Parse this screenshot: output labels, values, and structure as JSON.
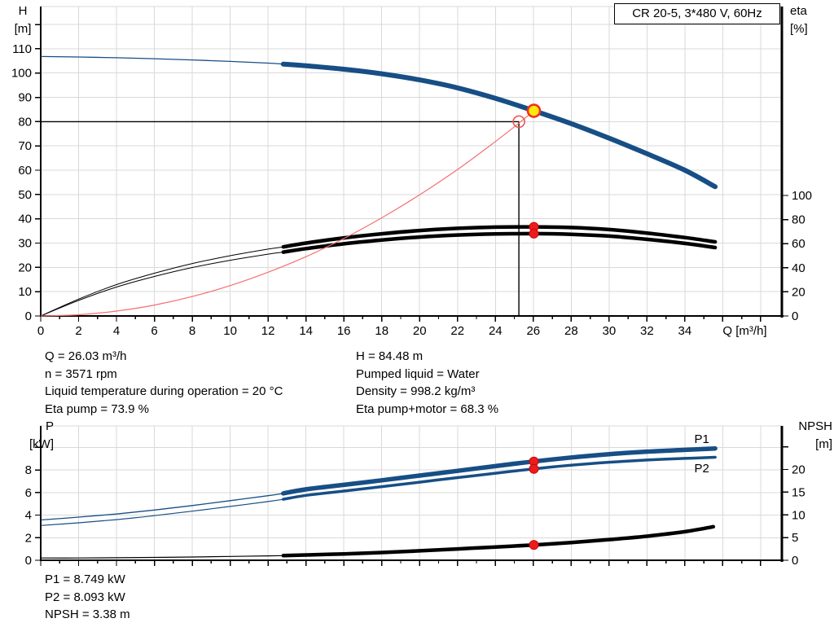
{
  "colors": {
    "grid": "#d9d9d9",
    "curve_blue": "#174e85",
    "curve_black": "#000000",
    "system_red": "#f47070",
    "marker_red": "#ee1b1b",
    "marker_yellow": "#ffe90c",
    "label_blue": "#2166ac"
  },
  "annotations": {
    "top_left": [
      "Q = 26.03 m³/h",
      "n = 3571 rpm",
      "Liquid temperature during operation = 20 °C",
      "Eta pump = 73.9 %"
    ],
    "top_right": [
      "H = 84.48 m",
      "Pumped liquid = Water",
      "Density = 998.2 kg/m³",
      "Eta pump+motor = 68.3 %"
    ],
    "bottom": [
      "P1 = 8.749 kW",
      "P2 = 8.093 kW",
      "NPSH = 3.38 m"
    ]
  },
  "chart_data": [
    {
      "type": "line",
      "name": "hq-efficiency-chart",
      "title": "CR 20-5, 3*480 V, 60Hz",
      "x_axis": {
        "label": "Q [m³/h]",
        "min": 0,
        "max": 39.12,
        "major_step": 2,
        "minor_step": 1,
        "tick_max": 38,
        "label_max": 34,
        "unit_label_at": 36
      },
      "left_axis": {
        "title": "H",
        "unit": "[m]",
        "min": 0,
        "max": 127.4,
        "step": 10,
        "tick_max": 120,
        "label_max": 110
      },
      "right_axis": {
        "title": "eta",
        "unit": "[%]",
        "min": 0,
        "max": 256.8,
        "step": 20,
        "tick_max": 100,
        "label_max": 100
      },
      "curves": [
        {
          "name": "head-curve",
          "axis": "left",
          "color": "#174e85",
          "width": 6,
          "thin_width": 1.3,
          "thick_from": 12.8,
          "points": [
            [
              0,
              106.8
            ],
            [
              2,
              106.6
            ],
            [
              4,
              106.3
            ],
            [
              6,
              105.9
            ],
            [
              8,
              105.4
            ],
            [
              10,
              104.8
            ],
            [
              12,
              104.1
            ],
            [
              12.8,
              103.7
            ],
            [
              14,
              103.0
            ],
            [
              16,
              101.6
            ],
            [
              18,
              99.7
            ],
            [
              20,
              97.2
            ],
            [
              22,
              93.9
            ],
            [
              24,
              89.6
            ],
            [
              26.03,
              84.48
            ],
            [
              28,
              79.2
            ],
            [
              30,
              73.2
            ],
            [
              32,
              66.8
            ],
            [
              34,
              60.0
            ],
            [
              35.6,
              53.2
            ]
          ]
        },
        {
          "name": "eta-pump-curve",
          "axis": "right",
          "color": "#000000",
          "width": 4.5,
          "thin_width": 1,
          "thick_from": 12.8,
          "points": [
            [
              0,
              0
            ],
            [
              2,
              14
            ],
            [
              4,
              26
            ],
            [
              6,
              35.5
            ],
            [
              8,
              43.5
            ],
            [
              10,
              50
            ],
            [
              12,
              55.5
            ],
            [
              12.8,
              57.3
            ],
            [
              14,
              60.5
            ],
            [
              16,
              64.8
            ],
            [
              18,
              68.2
            ],
            [
              20,
              70.9
            ],
            [
              22,
              72.7
            ],
            [
              24,
              73.7
            ],
            [
              26.03,
              73.9
            ],
            [
              28,
              73.4
            ],
            [
              30,
              71.7
            ],
            [
              32,
              68.8
            ],
            [
              34,
              65.1
            ],
            [
              35.6,
              61.5
            ]
          ]
        },
        {
          "name": "eta-pump-motor-curve",
          "axis": "right",
          "color": "#000000",
          "width": 4.5,
          "thin_width": 1,
          "thick_from": 12.8,
          "points": [
            [
              0,
              0
            ],
            [
              2,
              12.9
            ],
            [
              4,
              24
            ],
            [
              6,
              32.8
            ],
            [
              8,
              40.2
            ],
            [
              10,
              46.2
            ],
            [
              12,
              51.3
            ],
            [
              12.8,
              53.0
            ],
            [
              14,
              55.9
            ],
            [
              16,
              59.9
            ],
            [
              18,
              63.0
            ],
            [
              20,
              65.5
            ],
            [
              22,
              67.2
            ],
            [
              24,
              68.1
            ],
            [
              26.03,
              68.3
            ],
            [
              28,
              67.8
            ],
            [
              30,
              66.3
            ],
            [
              32,
              63.6
            ],
            [
              34,
              60.2
            ],
            [
              35.6,
              56.8
            ]
          ]
        },
        {
          "name": "system-curve",
          "axis": "left",
          "color": "#f47070",
          "width": 1.2,
          "thin_width": 1.2,
          "thick_from": null,
          "points": [
            [
              0,
              0
            ],
            [
              2,
              0.5
            ],
            [
              4,
              2.0
            ],
            [
              6,
              4.5
            ],
            [
              8,
              8.0
            ],
            [
              10,
              12.5
            ],
            [
              12,
              18.0
            ],
            [
              14,
              24.4
            ],
            [
              16,
              31.9
            ],
            [
              18,
              40.4
            ],
            [
              20,
              49.9
            ],
            [
              22,
              60.3
            ],
            [
              24,
              71.8
            ],
            [
              25.24,
              79.4
            ],
            [
              26.03,
              84.48
            ]
          ]
        }
      ],
      "ref_lines": [
        {
          "name": "head-guide-line",
          "axis": "left",
          "color": "#000000",
          "width": 1.4,
          "points": [
            [
              0,
              80
            ],
            [
              25.24,
              80
            ]
          ]
        },
        {
          "name": "flow-guide-line",
          "axis": "left",
          "color": "#000000",
          "width": 1.4,
          "points": [
            [
              25.24,
              80
            ],
            [
              25.24,
              0
            ]
          ]
        }
      ],
      "markers": [
        {
          "name": "requested-duty-point",
          "q": 25.24,
          "v": 80,
          "axis": "left",
          "r": 7,
          "fill": "none",
          "stroke": "#e85450",
          "sw": 1.6
        },
        {
          "name": "actual-duty-point",
          "q": 26.03,
          "v": 84.48,
          "axis": "left",
          "r": 7.5,
          "fill": "#ffe90c",
          "stroke": "#ee3124",
          "sw": 2.6
        },
        {
          "name": "eta-pump-point",
          "q": 26.03,
          "v": 73.9,
          "axis": "right",
          "r": 5.5,
          "fill": "#ee1b1b",
          "stroke": "#c40b0b",
          "sw": 1
        },
        {
          "name": "eta-pump-motor-point",
          "q": 26.03,
          "v": 68.3,
          "axis": "right",
          "r": 5.5,
          "fill": "#ee1b1b",
          "stroke": "#c40b0b",
          "sw": 1
        }
      ],
      "curve_labels": []
    },
    {
      "type": "line",
      "name": "power-npsh-chart",
      "title": "",
      "x_axis": {
        "label": "",
        "min": 0,
        "max": 39.12,
        "major_step": 2,
        "minor_step": 1,
        "tick_max": 38,
        "label_max": -1,
        "unit_label_at": 36
      },
      "left_axis": {
        "title": "P",
        "unit": "[kW]",
        "min": 0,
        "max": 11.9,
        "step": 2,
        "tick_max": 10,
        "label_max": 8
      },
      "right_axis": {
        "title": "NPSH",
        "unit": "[m]",
        "min": 0,
        "max": 29.6,
        "step": 5,
        "tick_max": 25,
        "label_max": 20
      },
      "curves": [
        {
          "name": "p1-curve",
          "axis": "left",
          "color": "#174e85",
          "width": 5.5,
          "thin_width": 1.3,
          "thick_from": 12.8,
          "points": [
            [
              0,
              3.57
            ],
            [
              2,
              3.82
            ],
            [
              4,
              4.1
            ],
            [
              6,
              4.45
            ],
            [
              8,
              4.85
            ],
            [
              10,
              5.28
            ],
            [
              12,
              5.72
            ],
            [
              12.8,
              5.92
            ],
            [
              14,
              6.28
            ],
            [
              16,
              6.68
            ],
            [
              18,
              7.08
            ],
            [
              20,
              7.5
            ],
            [
              22,
              7.92
            ],
            [
              24,
              8.34
            ],
            [
              26.03,
              8.749
            ],
            [
              28,
              9.1
            ],
            [
              30,
              9.4
            ],
            [
              32,
              9.62
            ],
            [
              34,
              9.78
            ],
            [
              35.6,
              9.9
            ]
          ]
        },
        {
          "name": "p2-curve",
          "axis": "left",
          "color": "#174e85",
          "width": 3.5,
          "thin_width": 1.2,
          "thick_from": 12.8,
          "points": [
            [
              0,
              3.08
            ],
            [
              2,
              3.32
            ],
            [
              4,
              3.6
            ],
            [
              6,
              3.95
            ],
            [
              8,
              4.35
            ],
            [
              10,
              4.77
            ],
            [
              12,
              5.2
            ],
            [
              12.8,
              5.4
            ],
            [
              14,
              5.75
            ],
            [
              16,
              6.13
            ],
            [
              18,
              6.52
            ],
            [
              20,
              6.92
            ],
            [
              22,
              7.32
            ],
            [
              24,
              7.71
            ],
            [
              26.03,
              8.093
            ],
            [
              28,
              8.42
            ],
            [
              30,
              8.68
            ],
            [
              32,
              8.88
            ],
            [
              34,
              9.02
            ],
            [
              35.6,
              9.12
            ]
          ]
        },
        {
          "name": "npsh-curve",
          "axis": "right",
          "color": "#000000",
          "width": 4.5,
          "thin_width": 1.2,
          "thick_from": 12.8,
          "points": [
            [
              0,
              0.5
            ],
            [
              2,
              0.5
            ],
            [
              4,
              0.55
            ],
            [
              6,
              0.62
            ],
            [
              8,
              0.72
            ],
            [
              10,
              0.84
            ],
            [
              12,
              0.97
            ],
            [
              12.8,
              1.03
            ],
            [
              14,
              1.17
            ],
            [
              16,
              1.4
            ],
            [
              18,
              1.7
            ],
            [
              20,
              2.08
            ],
            [
              22,
              2.5
            ],
            [
              24,
              2.92
            ],
            [
              26.03,
              3.38
            ],
            [
              28,
              3.9
            ],
            [
              30,
              4.55
            ],
            [
              32,
              5.3
            ],
            [
              34,
              6.3
            ],
            [
              35.5,
              7.4
            ]
          ]
        }
      ],
      "ref_lines": [],
      "markers": [
        {
          "name": "p1-point",
          "q": 26.03,
          "v": 8.749,
          "axis": "left",
          "r": 5.5,
          "fill": "#ee1b1b",
          "stroke": "#c40b0b",
          "sw": 1
        },
        {
          "name": "p2-point",
          "q": 26.03,
          "v": 8.093,
          "axis": "left",
          "r": 5.5,
          "fill": "#ee1b1b",
          "stroke": "#c40b0b",
          "sw": 1
        },
        {
          "name": "npsh-point",
          "q": 26.03,
          "v": 3.38,
          "axis": "right",
          "r": 5.5,
          "fill": "#ee1b1b",
          "stroke": "#c40b0b",
          "sw": 1
        }
      ],
      "curve_labels": [
        {
          "text": "P1",
          "q": 34.5,
          "v": 10.38,
          "axis": "left",
          "color": "#2166ac"
        },
        {
          "text": "P2",
          "q": 34.5,
          "v": 7.79,
          "axis": "left",
          "color": "#2166ac"
        }
      ]
    }
  ]
}
